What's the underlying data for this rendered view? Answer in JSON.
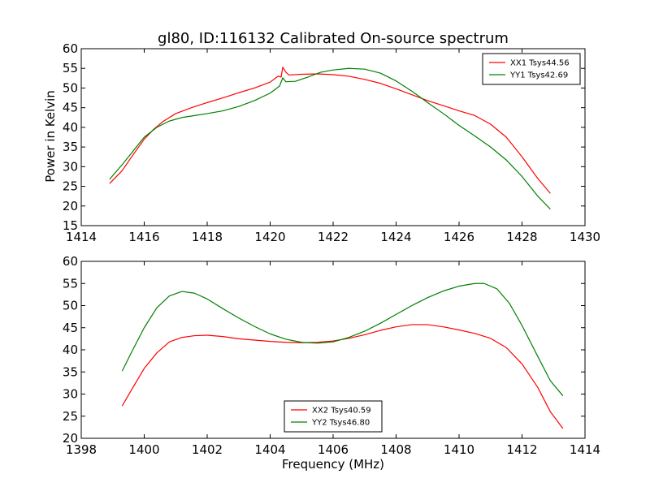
{
  "chart_data": [
    {
      "type": "line",
      "title": "gl80, ID:116132 Calibrated On-source spectrum",
      "xlabel": "",
      "ylabel": "Power in Kelvin",
      "xlim": [
        1414,
        1430
      ],
      "ylim": [
        15,
        60
      ],
      "xticks": [
        1414,
        1416,
        1418,
        1420,
        1422,
        1424,
        1426,
        1428,
        1430
      ],
      "yticks": [
        15,
        20,
        25,
        30,
        35,
        40,
        45,
        50,
        55,
        60
      ],
      "legend_position": "top-right",
      "series": [
        {
          "name": "XX1 Tsys44.56",
          "color": "#ff0000",
          "points": [
            [
              1414.9,
              25.7
            ],
            [
              1415.3,
              29.0
            ],
            [
              1415.6,
              32.5
            ],
            [
              1416.0,
              37.0
            ],
            [
              1416.3,
              39.5
            ],
            [
              1416.6,
              41.5
            ],
            [
              1417.0,
              43.5
            ],
            [
              1417.5,
              45.0
            ],
            [
              1418.0,
              46.3
            ],
            [
              1418.5,
              47.5
            ],
            [
              1419.0,
              48.8
            ],
            [
              1419.5,
              50.0
            ],
            [
              1420.0,
              51.5
            ],
            [
              1420.25,
              53.0
            ],
            [
              1420.35,
              52.8
            ],
            [
              1420.4,
              55.3
            ],
            [
              1420.5,
              54.0
            ],
            [
              1420.6,
              53.3
            ],
            [
              1421.0,
              53.5
            ],
            [
              1421.5,
              53.6
            ],
            [
              1422.0,
              53.4
            ],
            [
              1422.5,
              53.0
            ],
            [
              1423.0,
              52.2
            ],
            [
              1423.5,
              51.2
            ],
            [
              1424.0,
              49.8
            ],
            [
              1424.5,
              48.3
            ],
            [
              1425.0,
              46.8
            ],
            [
              1425.5,
              45.5
            ],
            [
              1426.0,
              44.2
            ],
            [
              1426.5,
              43.0
            ],
            [
              1427.0,
              40.8
            ],
            [
              1427.5,
              37.5
            ],
            [
              1428.0,
              32.5
            ],
            [
              1428.5,
              27.0
            ],
            [
              1428.9,
              23.2
            ]
          ]
        },
        {
          "name": "YY1 Tsys42.69",
          "color": "#008000",
          "points": [
            [
              1414.9,
              26.8
            ],
            [
              1415.3,
              30.5
            ],
            [
              1415.6,
              33.5
            ],
            [
              1416.0,
              37.5
            ],
            [
              1416.4,
              40.0
            ],
            [
              1416.8,
              41.6
            ],
            [
              1417.2,
              42.5
            ],
            [
              1417.6,
              43.0
            ],
            [
              1418.0,
              43.5
            ],
            [
              1418.5,
              44.2
            ],
            [
              1419.0,
              45.3
            ],
            [
              1419.5,
              46.8
            ],
            [
              1420.0,
              48.7
            ],
            [
              1420.3,
              50.5
            ],
            [
              1420.4,
              52.6
            ],
            [
              1420.5,
              51.6
            ],
            [
              1420.8,
              51.7
            ],
            [
              1421.2,
              52.8
            ],
            [
              1421.6,
              54.0
            ],
            [
              1422.0,
              54.6
            ],
            [
              1422.5,
              55.0
            ],
            [
              1423.0,
              54.8
            ],
            [
              1423.5,
              53.8
            ],
            [
              1424.0,
              51.8
            ],
            [
              1424.5,
              49.2
            ],
            [
              1425.0,
              46.3
            ],
            [
              1425.5,
              43.5
            ],
            [
              1426.0,
              40.5
            ],
            [
              1426.5,
              37.8
            ],
            [
              1427.0,
              35.0
            ],
            [
              1427.5,
              31.7
            ],
            [
              1428.0,
              27.5
            ],
            [
              1428.5,
              22.5
            ],
            [
              1428.9,
              19.2
            ]
          ]
        }
      ]
    },
    {
      "type": "line",
      "title": "",
      "xlabel": "Frequency (MHz)",
      "ylabel": "",
      "xlim": [
        1398,
        1414
      ],
      "ylim": [
        20,
        60
      ],
      "xticks": [
        1398,
        1400,
        1402,
        1404,
        1406,
        1408,
        1410,
        1412,
        1414
      ],
      "yticks": [
        20,
        25,
        30,
        35,
        40,
        45,
        50,
        55,
        60
      ],
      "legend_position": "bottom-center",
      "series": [
        {
          "name": "XX2 Tsys40.59",
          "color": "#ff0000",
          "points": [
            [
              1399.3,
              27.3
            ],
            [
              1399.6,
              31.0
            ],
            [
              1400.0,
              35.8
            ],
            [
              1400.4,
              39.3
            ],
            [
              1400.8,
              41.8
            ],
            [
              1401.2,
              42.8
            ],
            [
              1401.6,
              43.2
            ],
            [
              1402.0,
              43.3
            ],
            [
              1402.5,
              43.0
            ],
            [
              1403.0,
              42.5
            ],
            [
              1403.5,
              42.2
            ],
            [
              1404.0,
              41.9
            ],
            [
              1404.5,
              41.7
            ],
            [
              1405.0,
              41.6
            ],
            [
              1405.5,
              41.7
            ],
            [
              1406.0,
              42.0
            ],
            [
              1406.5,
              42.6
            ],
            [
              1407.0,
              43.4
            ],
            [
              1407.5,
              44.4
            ],
            [
              1408.0,
              45.2
            ],
            [
              1408.5,
              45.7
            ],
            [
              1409.0,
              45.7
            ],
            [
              1409.5,
              45.2
            ],
            [
              1410.0,
              44.5
            ],
            [
              1410.5,
              43.7
            ],
            [
              1411.0,
              42.6
            ],
            [
              1411.5,
              40.5
            ],
            [
              1412.0,
              36.8
            ],
            [
              1412.5,
              31.5
            ],
            [
              1412.9,
              26.0
            ],
            [
              1413.3,
              22.2
            ]
          ]
        },
        {
          "name": "YY2 Tsys46.80",
          "color": "#008000",
          "points": [
            [
              1399.3,
              35.2
            ],
            [
              1399.6,
              39.5
            ],
            [
              1400.0,
              45.0
            ],
            [
              1400.4,
              49.5
            ],
            [
              1400.8,
              52.2
            ],
            [
              1401.2,
              53.2
            ],
            [
              1401.6,
              52.8
            ],
            [
              1402.0,
              51.5
            ],
            [
              1402.5,
              49.3
            ],
            [
              1403.0,
              47.2
            ],
            [
              1403.5,
              45.3
            ],
            [
              1404.0,
              43.6
            ],
            [
              1404.5,
              42.4
            ],
            [
              1405.0,
              41.7
            ],
            [
              1405.5,
              41.5
            ],
            [
              1406.0,
              41.8
            ],
            [
              1406.5,
              42.8
            ],
            [
              1407.0,
              44.2
            ],
            [
              1407.5,
              46.0
            ],
            [
              1408.0,
              48.0
            ],
            [
              1408.5,
              50.0
            ],
            [
              1409.0,
              51.8
            ],
            [
              1409.5,
              53.3
            ],
            [
              1410.0,
              54.4
            ],
            [
              1410.5,
              55.0
            ],
            [
              1410.8,
              55.0
            ],
            [
              1411.2,
              53.8
            ],
            [
              1411.6,
              50.5
            ],
            [
              1412.0,
              45.5
            ],
            [
              1412.5,
              38.5
            ],
            [
              1412.9,
              33.0
            ],
            [
              1413.3,
              29.6
            ]
          ]
        }
      ]
    }
  ]
}
